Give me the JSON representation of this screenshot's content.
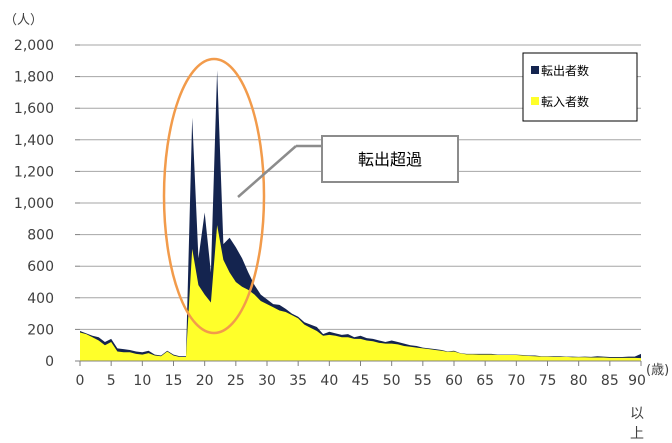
{
  "chart_data": {
    "type": "area",
    "y_unit": "（人）",
    "x_unit": "(歳)",
    "last_label_suffix": [
      "以",
      "上"
    ],
    "ylim": [
      0,
      2000
    ],
    "yticks": [
      0,
      200,
      400,
      600,
      800,
      1000,
      1200,
      1400,
      1600,
      1800,
      2000
    ],
    "ytick_labels": [
      "0",
      "200",
      "400",
      "600",
      "800",
      "1,000",
      "1,200",
      "1,400",
      "1,600",
      "1,800",
      "2,000"
    ],
    "xlim": [
      0,
      90
    ],
    "xticks": [
      0,
      5,
      10,
      15,
      20,
      25,
      30,
      35,
      40,
      45,
      50,
      55,
      60,
      65,
      70,
      75,
      80,
      85,
      90
    ],
    "xtick_labels": [
      "0",
      "5",
      "10",
      "15",
      "20",
      "25",
      "30",
      "35",
      "40",
      "45",
      "50",
      "55",
      "60",
      "65",
      "70",
      "75",
      "80",
      "85",
      "90"
    ],
    "grid": true,
    "legend_position": "top-right",
    "annotation": "転出超過",
    "x": [
      0,
      1,
      2,
      3,
      4,
      5,
      6,
      7,
      8,
      9,
      10,
      11,
      12,
      13,
      14,
      15,
      16,
      17,
      18,
      19,
      20,
      21,
      22,
      23,
      24,
      25,
      26,
      27,
      28,
      29,
      30,
      31,
      32,
      33,
      34,
      35,
      36,
      37,
      38,
      39,
      40,
      41,
      42,
      43,
      44,
      45,
      46,
      47,
      48,
      49,
      50,
      51,
      52,
      53,
      54,
      55,
      56,
      57,
      58,
      59,
      60,
      61,
      62,
      63,
      64,
      65,
      66,
      67,
      68,
      69,
      70,
      71,
      72,
      73,
      74,
      75,
      76,
      77,
      78,
      79,
      80,
      81,
      82,
      83,
      84,
      85,
      86,
      87,
      88,
      89,
      90
    ],
    "series": [
      {
        "name": "転出者数",
        "color": "#14244f",
        "values": [
          190,
          175,
          160,
          150,
          120,
          140,
          80,
          75,
          70,
          60,
          55,
          65,
          40,
          35,
          65,
          40,
          30,
          30,
          1540,
          650,
          940,
          560,
          1840,
          740,
          780,
          720,
          650,
          560,
          480,
          420,
          390,
          360,
          355,
          330,
          300,
          280,
          245,
          230,
          215,
          170,
          185,
          175,
          165,
          170,
          150,
          160,
          145,
          140,
          130,
          120,
          130,
          120,
          110,
          100,
          95,
          85,
          80,
          75,
          70,
          60,
          65,
          50,
          45,
          45,
          45,
          45,
          45,
          40,
          40,
          40,
          40,
          38,
          35,
          35,
          30,
          30,
          30,
          30,
          28,
          28,
          26,
          28,
          26,
          30,
          28,
          25,
          25,
          25,
          28,
          28,
          45
        ]
      },
      {
        "name": "転入者数",
        "color": "#ffff2a",
        "values": [
          180,
          170,
          150,
          130,
          100,
          120,
          60,
          55,
          55,
          45,
          40,
          50,
          35,
          30,
          60,
          35,
          25,
          25,
          710,
          480,
          420,
          370,
          860,
          640,
          560,
          500,
          470,
          450,
          420,
          380,
          360,
          340,
          320,
          310,
          290,
          270,
          230,
          210,
          190,
          160,
          165,
          160,
          150,
          150,
          140,
          140,
          130,
          125,
          115,
          110,
          110,
          105,
          95,
          90,
          85,
          80,
          75,
          70,
          65,
          58,
          60,
          48,
          42,
          42,
          40,
          40,
          40,
          38,
          38,
          38,
          38,
          35,
          32,
          30,
          28,
          28,
          26,
          26,
          26,
          24,
          24,
          24,
          22,
          22,
          22,
          20,
          20,
          20,
          20,
          20,
          18
        ]
      }
    ]
  }
}
